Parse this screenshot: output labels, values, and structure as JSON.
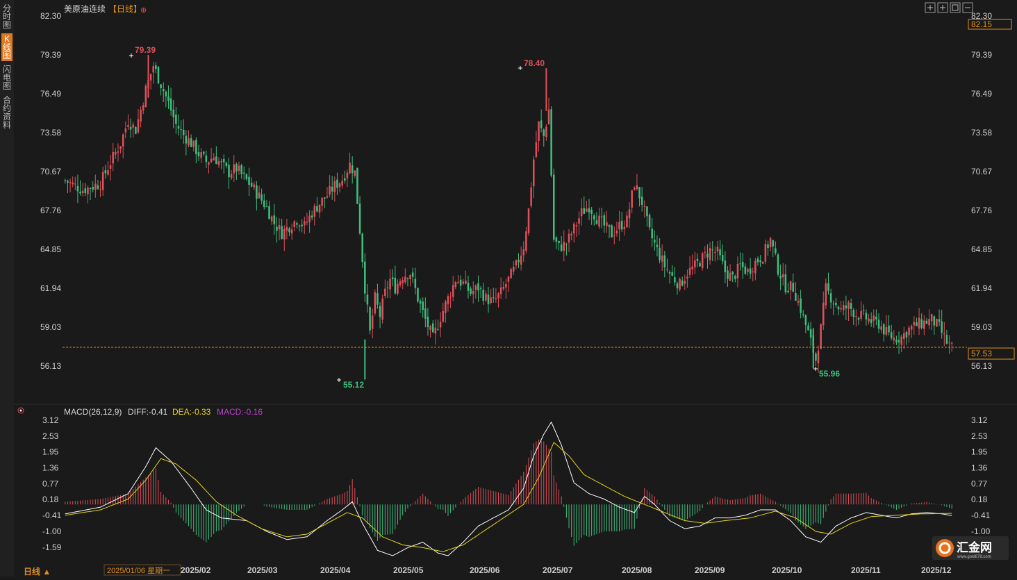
{
  "sidebar": {
    "tabs": [
      {
        "label": "分时图",
        "active": false
      },
      {
        "label": "K线图",
        "active": true
      },
      {
        "label": "闪电图",
        "active": false
      },
      {
        "label": "合约资料",
        "active": false
      }
    ]
  },
  "header": {
    "instrument": "美原油连续",
    "period_tag": "【日线】",
    "add_icon": "⊕"
  },
  "toolbar_icons": [
    "move-icon",
    "zoom-in-icon",
    "fit-icon",
    "zoom-out-icon"
  ],
  "colors": {
    "up": "#e0505a",
    "down": "#3fbf7f",
    "background": "#1a1a1a",
    "grid": "#2a2a2a",
    "price_line": "#e0901e",
    "diff_line": "#ffffff",
    "dea_line": "#e6d21e",
    "macd_label": "#b844c4"
  },
  "bottom": {
    "period_label": "日线 ▲",
    "cursor_date": "2025/01/06 星期一"
  },
  "price_axis": {
    "ticks": [
      "82.30",
      "79.39",
      "76.49",
      "73.58",
      "70.67",
      "67.76",
      "64.85",
      "61.94",
      "59.03",
      "56.13"
    ],
    "top_badge": "82.15",
    "last_price": "57.53"
  },
  "annotations": {
    "high1": "79.39",
    "high2": "78.40",
    "low1": "55.12",
    "low2": "55.96"
  },
  "macd_panel": {
    "title": "MACD(26,12,9)",
    "diff": "DIFF:-0.41",
    "dea": "DEA:-0.33",
    "macd": "MACD:-0.16",
    "ticks": [
      "3.12",
      "2.53",
      "1.95",
      "1.36",
      "0.77",
      "0.18",
      "-0.41",
      "-1.00",
      "-1.59"
    ]
  },
  "time_axis": {
    "labels": [
      "2025/02",
      "2025/03",
      "2025/04",
      "2025/05",
      "2025/06",
      "2025/07",
      "2025/08",
      "2025/09",
      "2025/10",
      "2025/11",
      "2025/12"
    ]
  },
  "logo": {
    "name": "汇金网",
    "url_text": "www.gold678.com"
  },
  "chart_data": [
    {
      "type": "candlestick",
      "title": "美原油连续",
      "ylim": [
        56.13,
        82.3
      ],
      "yticks": [
        82.3,
        79.39,
        76.49,
        73.58,
        70.67,
        67.76,
        64.85,
        61.94,
        59.03,
        56.13
      ],
      "x_labels": [
        "2025/02",
        "2025/03",
        "2025/04",
        "2025/05",
        "2025/06",
        "2025/07",
        "2025/08",
        "2025/09",
        "2025/10",
        "2025/11",
        "2025/12"
      ],
      "close_path": [
        [
          0,
          70.0
        ],
        [
          7,
          69.3
        ],
        [
          14,
          69.8
        ],
        [
          17,
          71.0
        ],
        [
          22,
          72.8
        ],
        [
          25,
          74.5
        ],
        [
          28,
          73.8
        ],
        [
          32,
          76.8
        ],
        [
          35,
          78.6
        ],
        [
          38,
          77.2
        ],
        [
          41,
          75.8
        ],
        [
          44,
          74.2
        ],
        [
          47,
          73.4
        ],
        [
          50,
          72.8
        ],
        [
          53,
          72.0
        ],
        [
          56,
          71.4
        ],
        [
          59,
          71.8
        ],
        [
          62,
          71.2
        ],
        [
          65,
          70.6
        ],
        [
          68,
          70.9
        ],
        [
          71,
          70.2
        ],
        [
          74,
          69.6
        ],
        [
          77,
          68.8
        ],
        [
          80,
          68.0
        ],
        [
          83,
          66.8
        ],
        [
          86,
          66.1
        ],
        [
          89,
          66.6
        ],
        [
          92,
          67.1
        ],
        [
          95,
          66.6
        ],
        [
          98,
          67.6
        ],
        [
          101,
          68.3
        ],
        [
          104,
          68.9
        ],
        [
          107,
          69.6
        ],
        [
          110,
          70.1
        ],
        [
          113,
          71.2
        ],
        [
          115,
          70.6
        ],
        [
          117,
          66.3
        ],
        [
          119,
          62.0
        ],
        [
          121,
          58.6
        ],
        [
          123,
          61.2
        ],
        [
          125,
          59.9
        ],
        [
          127,
          61.6
        ],
        [
          129,
          62.6
        ],
        [
          131,
          62.0
        ],
        [
          134,
          62.9
        ],
        [
          137,
          63.1
        ],
        [
          140,
          61.2
        ],
        [
          143,
          59.6
        ],
        [
          146,
          58.2
        ],
        [
          149,
          59.8
        ],
        [
          152,
          61.2
        ],
        [
          155,
          62.6
        ],
        [
          158,
          62.3
        ],
        [
          161,
          61.6
        ],
        [
          164,
          62.0
        ],
        [
          167,
          61.2
        ],
        [
          170,
          60.9
        ],
        [
          173,
          61.6
        ],
        [
          176,
          62.6
        ],
        [
          179,
          63.6
        ],
        [
          182,
          65.1
        ],
        [
          184,
          67.8
        ],
        [
          186,
          71.6
        ],
        [
          188,
          74.2
        ],
        [
          190,
          73.3
        ],
        [
          192,
          75.3
        ],
        [
          194,
          65.6
        ],
        [
          196,
          65.0
        ],
        [
          199,
          65.3
        ],
        [
          202,
          66.4
        ],
        [
          205,
          67.6
        ],
        [
          208,
          68.1
        ],
        [
          211,
          67.2
        ],
        [
          214,
          66.6
        ],
        [
          217,
          66.0
        ],
        [
          220,
          66.6
        ],
        [
          223,
          67.0
        ],
        [
          226,
          69.8
        ],
        [
          229,
          68.4
        ],
        [
          232,
          66.1
        ],
        [
          235,
          64.8
        ],
        [
          238,
          63.6
        ],
        [
          241,
          62.8
        ],
        [
          244,
          62.2
        ],
        [
          247,
          63.1
        ],
        [
          250,
          63.6
        ],
        [
          253,
          64.2
        ],
        [
          256,
          64.8
        ],
        [
          259,
          64.6
        ],
        [
          262,
          63.2
        ],
        [
          265,
          62.7
        ],
        [
          268,
          63.6
        ],
        [
          271,
          63.2
        ],
        [
          274,
          63.9
        ],
        [
          277,
          64.4
        ],
        [
          280,
          65.6
        ],
        [
          283,
          63.4
        ],
        [
          286,
          62.1
        ],
        [
          289,
          62.0
        ],
        [
          292,
          60.4
        ],
        [
          295,
          58.6
        ],
        [
          298,
          56.6
        ],
        [
          300,
          58.9
        ],
        [
          302,
          61.9
        ],
        [
          305,
          61.0
        ],
        [
          308,
          60.3
        ],
        [
          311,
          60.6
        ],
        [
          314,
          60.0
        ],
        [
          317,
          59.8
        ],
        [
          320,
          59.5
        ],
        [
          323,
          59.3
        ],
        [
          326,
          58.6
        ],
        [
          329,
          58.2
        ],
        [
          332,
          58.3
        ],
        [
          335,
          58.9
        ],
        [
          338,
          59.2
        ],
        [
          341,
          59.4
        ],
        [
          344,
          59.6
        ],
        [
          347,
          59.0
        ],
        [
          350,
          57.9
        ],
        [
          352,
          57.5
        ]
      ],
      "highs": [
        {
          "label": "79.39",
          "value": 79.39
        },
        {
          "label": "78.40",
          "value": 78.4
        }
      ],
      "lows": [
        {
          "label": "55.12",
          "value": 55.12
        },
        {
          "label": "55.96",
          "value": 55.96
        }
      ],
      "last_price": 57.53
    },
    {
      "type": "macd",
      "title": "MACD(26,12,9)",
      "ylim": [
        -1.59,
        3.12
      ],
      "yticks": [
        3.12,
        2.53,
        1.95,
        1.36,
        0.77,
        0.18,
        -0.41,
        -1.0,
        -1.59
      ],
      "series": [
        {
          "name": "DIFF",
          "last": -0.41,
          "values_path": [
            [
              0,
              -0.35
            ],
            [
              14,
              -0.1
            ],
            [
              25,
              0.4
            ],
            [
              32,
              1.4
            ],
            [
              36,
              2.1
            ],
            [
              42,
              1.6
            ],
            [
              50,
              0.6
            ],
            [
              56,
              -0.2
            ],
            [
              62,
              -0.5
            ],
            [
              72,
              -0.6
            ],
            [
              80,
              -1.0
            ],
            [
              88,
              -1.3
            ],
            [
              96,
              -1.2
            ],
            [
              104,
              -0.6
            ],
            [
              110,
              -0.2
            ],
            [
              114,
              0.1
            ],
            [
              118,
              -0.7
            ],
            [
              124,
              -1.7
            ],
            [
              130,
              -1.9
            ],
            [
              136,
              -1.6
            ],
            [
              142,
              -1.4
            ],
            [
              148,
              -1.8
            ],
            [
              152,
              -1.9
            ],
            [
              158,
              -1.4
            ],
            [
              164,
              -0.8
            ],
            [
              170,
              -0.5
            ],
            [
              176,
              -0.2
            ],
            [
              182,
              0.6
            ],
            [
              186,
              1.8
            ],
            [
              190,
              2.6
            ],
            [
              193,
              3.05
            ],
            [
              197,
              2.2
            ],
            [
              202,
              0.8
            ],
            [
              208,
              0.4
            ],
            [
              214,
              0.2
            ],
            [
              220,
              -0.1
            ],
            [
              226,
              -0.3
            ],
            [
              230,
              0.3
            ],
            [
              234,
              0.0
            ],
            [
              240,
              -0.6
            ],
            [
              246,
              -0.9
            ],
            [
              252,
              -0.8
            ],
            [
              258,
              -0.5
            ],
            [
              264,
              -0.5
            ],
            [
              270,
              -0.4
            ],
            [
              276,
              -0.2
            ],
            [
              282,
              -0.2
            ],
            [
              288,
              -0.6
            ],
            [
              294,
              -1.2
            ],
            [
              300,
              -1.4
            ],
            [
              306,
              -0.8
            ],
            [
              312,
              -0.5
            ],
            [
              318,
              -0.3
            ],
            [
              324,
              -0.4
            ],
            [
              330,
              -0.5
            ],
            [
              336,
              -0.35
            ],
            [
              342,
              -0.3
            ],
            [
              348,
              -0.35
            ],
            [
              352,
              -0.41
            ]
          ]
        },
        {
          "name": "DEA",
          "last": -0.33,
          "values_path": [
            [
              0,
              -0.4
            ],
            [
              14,
              -0.2
            ],
            [
              25,
              0.2
            ],
            [
              32,
              0.9
            ],
            [
              38,
              1.7
            ],
            [
              44,
              1.5
            ],
            [
              52,
              0.9
            ],
            [
              60,
              0.1
            ],
            [
              68,
              -0.4
            ],
            [
              78,
              -0.9
            ],
            [
              88,
              -1.2
            ],
            [
              96,
              -1.1
            ],
            [
              104,
              -0.7
            ],
            [
              112,
              -0.3
            ],
            [
              118,
              -0.5
            ],
            [
              126,
              -1.2
            ],
            [
              134,
              -1.5
            ],
            [
              142,
              -1.6
            ],
            [
              150,
              -1.75
            ],
            [
              158,
              -1.5
            ],
            [
              166,
              -1.0
            ],
            [
              174,
              -0.5
            ],
            [
              182,
              0.0
            ],
            [
              188,
              1.0
            ],
            [
              194,
              2.3
            ],
            [
              200,
              1.8
            ],
            [
              206,
              1.1
            ],
            [
              214,
              0.7
            ],
            [
              222,
              0.3
            ],
            [
              230,
              0.0
            ],
            [
              238,
              -0.3
            ],
            [
              246,
              -0.6
            ],
            [
              254,
              -0.7
            ],
            [
              262,
              -0.6
            ],
            [
              272,
              -0.5
            ],
            [
              282,
              -0.25
            ],
            [
              290,
              -0.5
            ],
            [
              298,
              -1.0
            ],
            [
              304,
              -1.1
            ],
            [
              312,
              -0.7
            ],
            [
              320,
              -0.45
            ],
            [
              330,
              -0.4
            ],
            [
              340,
              -0.35
            ],
            [
              352,
              -0.33
            ]
          ]
        },
        {
          "name": "MACD",
          "last": -0.16
        }
      ]
    }
  ]
}
